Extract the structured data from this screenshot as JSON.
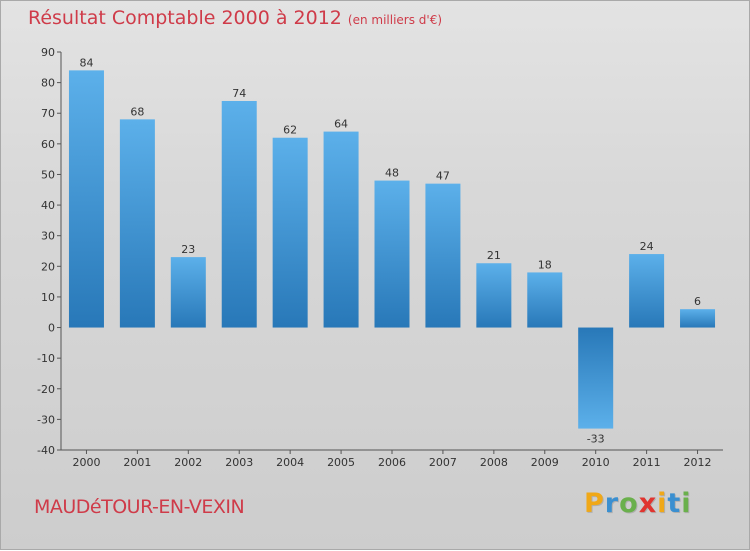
{
  "header": {
    "title": "Résultat Comptable 2000 à 2012",
    "unit": "(en milliers d'€)"
  },
  "footer": {
    "commune": "MAUDéTOUR-EN-VEXIN",
    "logo_letters": [
      "P",
      "r",
      "o",
      "x",
      "i",
      "t",
      "i"
    ],
    "logo_colors": [
      "#f0a818",
      "#3a8fd0",
      "#6ab04c",
      "#e0342f",
      "#f0a818",
      "#3a8fd0",
      "#6ab04c"
    ]
  },
  "chart_data": {
    "type": "bar",
    "title": "Résultat Comptable 2000 à 2012",
    "categories": [
      "2000",
      "2001",
      "2002",
      "2003",
      "2004",
      "2005",
      "2006",
      "2007",
      "2008",
      "2009",
      "2010",
      "2011",
      "2012"
    ],
    "values": [
      84,
      68,
      23,
      74,
      62,
      64,
      48,
      47,
      21,
      18,
      -33,
      24,
      6
    ],
    "ylim": [
      -40,
      90
    ],
    "yticks": [
      90,
      80,
      70,
      60,
      50,
      40,
      30,
      20,
      10,
      0,
      -10,
      -20,
      -30,
      -40
    ],
    "grid": false,
    "bar_color_light": "#5cb0ea",
    "bar_color_dark": "#2878b8"
  }
}
